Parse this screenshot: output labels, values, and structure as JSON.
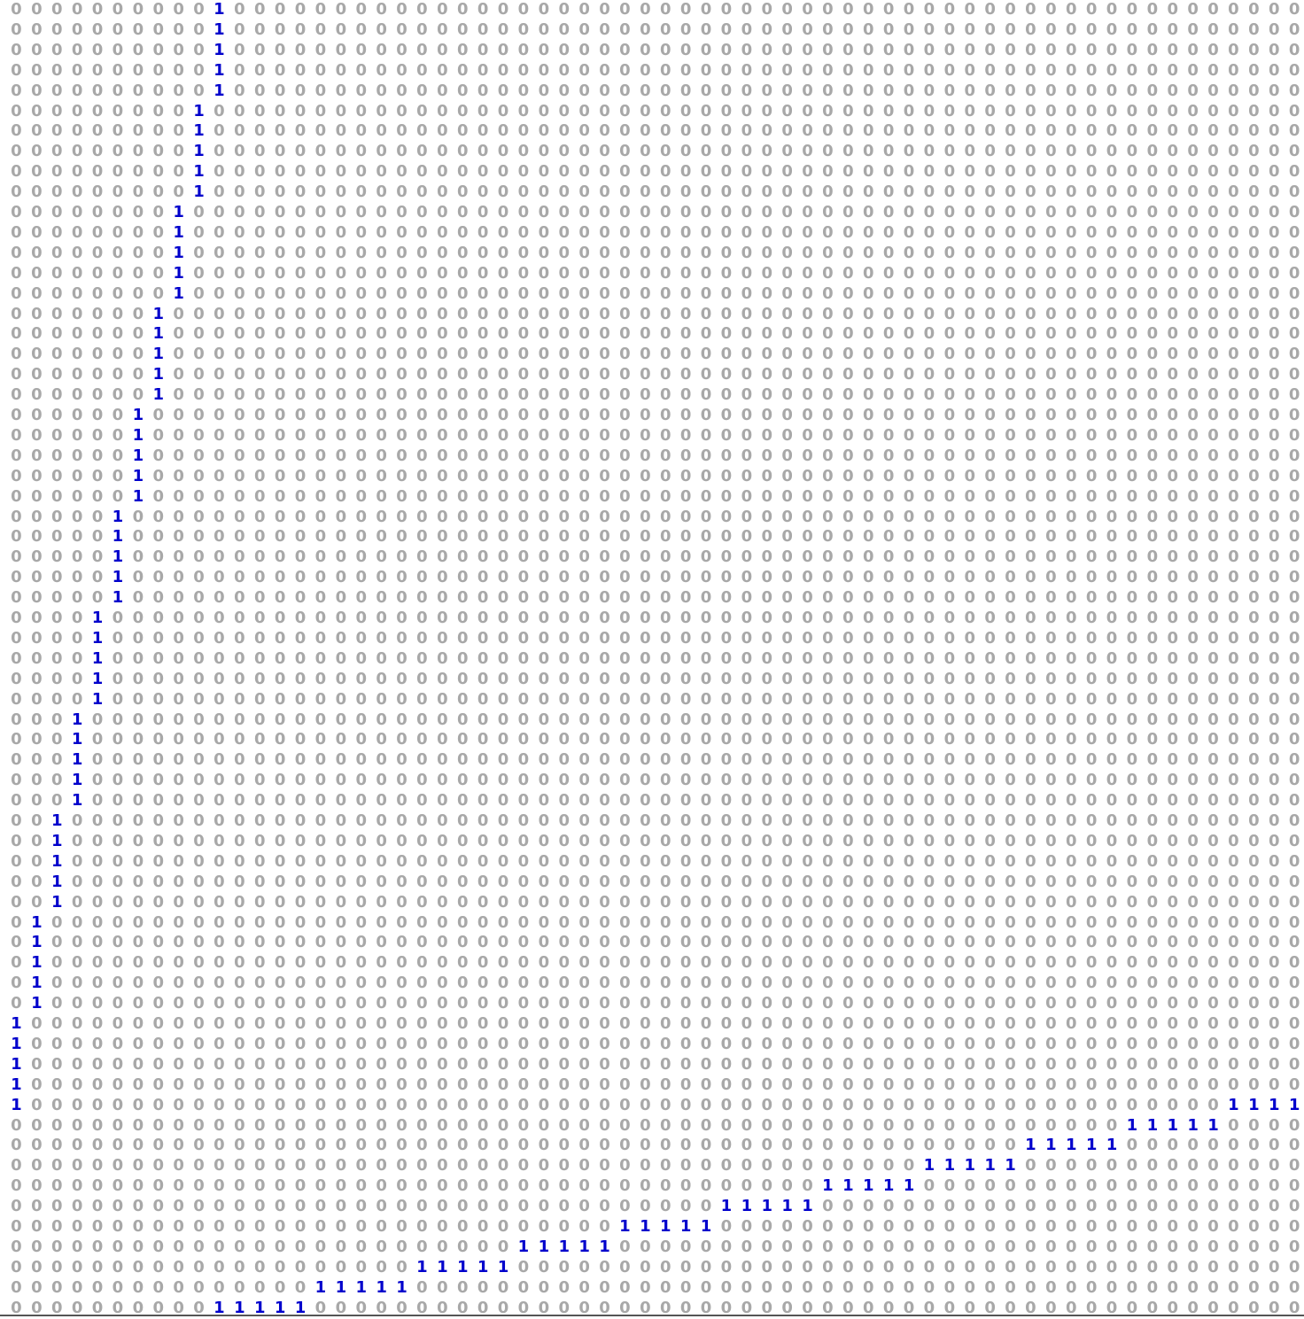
{
  "matrix": {
    "rows": 65,
    "cols": 64,
    "zero_symbol": "0",
    "one_symbol": "1",
    "zero_color": "#a8a8a8",
    "one_color": "#0000cc",
    "ones": [
      [
        0,
        10
      ],
      [
        1,
        10
      ],
      [
        2,
        10
      ],
      [
        3,
        10
      ],
      [
        4,
        10
      ],
      [
        5,
        9
      ],
      [
        6,
        9
      ],
      [
        7,
        9
      ],
      [
        8,
        9
      ],
      [
        9,
        9
      ],
      [
        10,
        8
      ],
      [
        11,
        8
      ],
      [
        12,
        8
      ],
      [
        13,
        8
      ],
      [
        14,
        8
      ],
      [
        15,
        7
      ],
      [
        16,
        7
      ],
      [
        17,
        7
      ],
      [
        18,
        7
      ],
      [
        19,
        7
      ],
      [
        20,
        6
      ],
      [
        21,
        6
      ],
      [
        22,
        6
      ],
      [
        23,
        6
      ],
      [
        24,
        6
      ],
      [
        25,
        5
      ],
      [
        26,
        5
      ],
      [
        27,
        5
      ],
      [
        28,
        5
      ],
      [
        29,
        5
      ],
      [
        30,
        4
      ],
      [
        31,
        4
      ],
      [
        32,
        4
      ],
      [
        33,
        4
      ],
      [
        34,
        4
      ],
      [
        35,
        3
      ],
      [
        36,
        3
      ],
      [
        37,
        3
      ],
      [
        38,
        3
      ],
      [
        39,
        3
      ],
      [
        40,
        2
      ],
      [
        41,
        2
      ],
      [
        42,
        2
      ],
      [
        43,
        2
      ],
      [
        44,
        2
      ],
      [
        45,
        1
      ],
      [
        46,
        1
      ],
      [
        47,
        1
      ],
      [
        48,
        1
      ],
      [
        49,
        1
      ],
      [
        50,
        0
      ],
      [
        51,
        0
      ],
      [
        52,
        0
      ],
      [
        53,
        0
      ],
      [
        54,
        0
      ],
      [
        54,
        60
      ],
      [
        54,
        61
      ],
      [
        54,
        62
      ],
      [
        54,
        63
      ],
      [
        55,
        55
      ],
      [
        55,
        56
      ],
      [
        55,
        57
      ],
      [
        55,
        58
      ],
      [
        55,
        59
      ],
      [
        56,
        50
      ],
      [
        56,
        51
      ],
      [
        56,
        52
      ],
      [
        56,
        53
      ],
      [
        56,
        54
      ],
      [
        57,
        45
      ],
      [
        57,
        46
      ],
      [
        57,
        47
      ],
      [
        57,
        48
      ],
      [
        57,
        49
      ],
      [
        58,
        40
      ],
      [
        58,
        41
      ],
      [
        58,
        42
      ],
      [
        58,
        43
      ],
      [
        58,
        44
      ],
      [
        59,
        35
      ],
      [
        59,
        36
      ],
      [
        59,
        37
      ],
      [
        59,
        38
      ],
      [
        59,
        39
      ],
      [
        60,
        30
      ],
      [
        60,
        31
      ],
      [
        60,
        32
      ],
      [
        60,
        33
      ],
      [
        60,
        34
      ],
      [
        61,
        25
      ],
      [
        61,
        26
      ],
      [
        61,
        27
      ],
      [
        61,
        28
      ],
      [
        61,
        29
      ],
      [
        62,
        20
      ],
      [
        62,
        21
      ],
      [
        62,
        22
      ],
      [
        62,
        23
      ],
      [
        62,
        24
      ],
      [
        63,
        15
      ],
      [
        63,
        16
      ],
      [
        63,
        17
      ],
      [
        63,
        18
      ],
      [
        63,
        19
      ],
      [
        64,
        10
      ],
      [
        64,
        11
      ],
      [
        64,
        12
      ],
      [
        64,
        13
      ],
      [
        64,
        14
      ]
    ]
  }
}
